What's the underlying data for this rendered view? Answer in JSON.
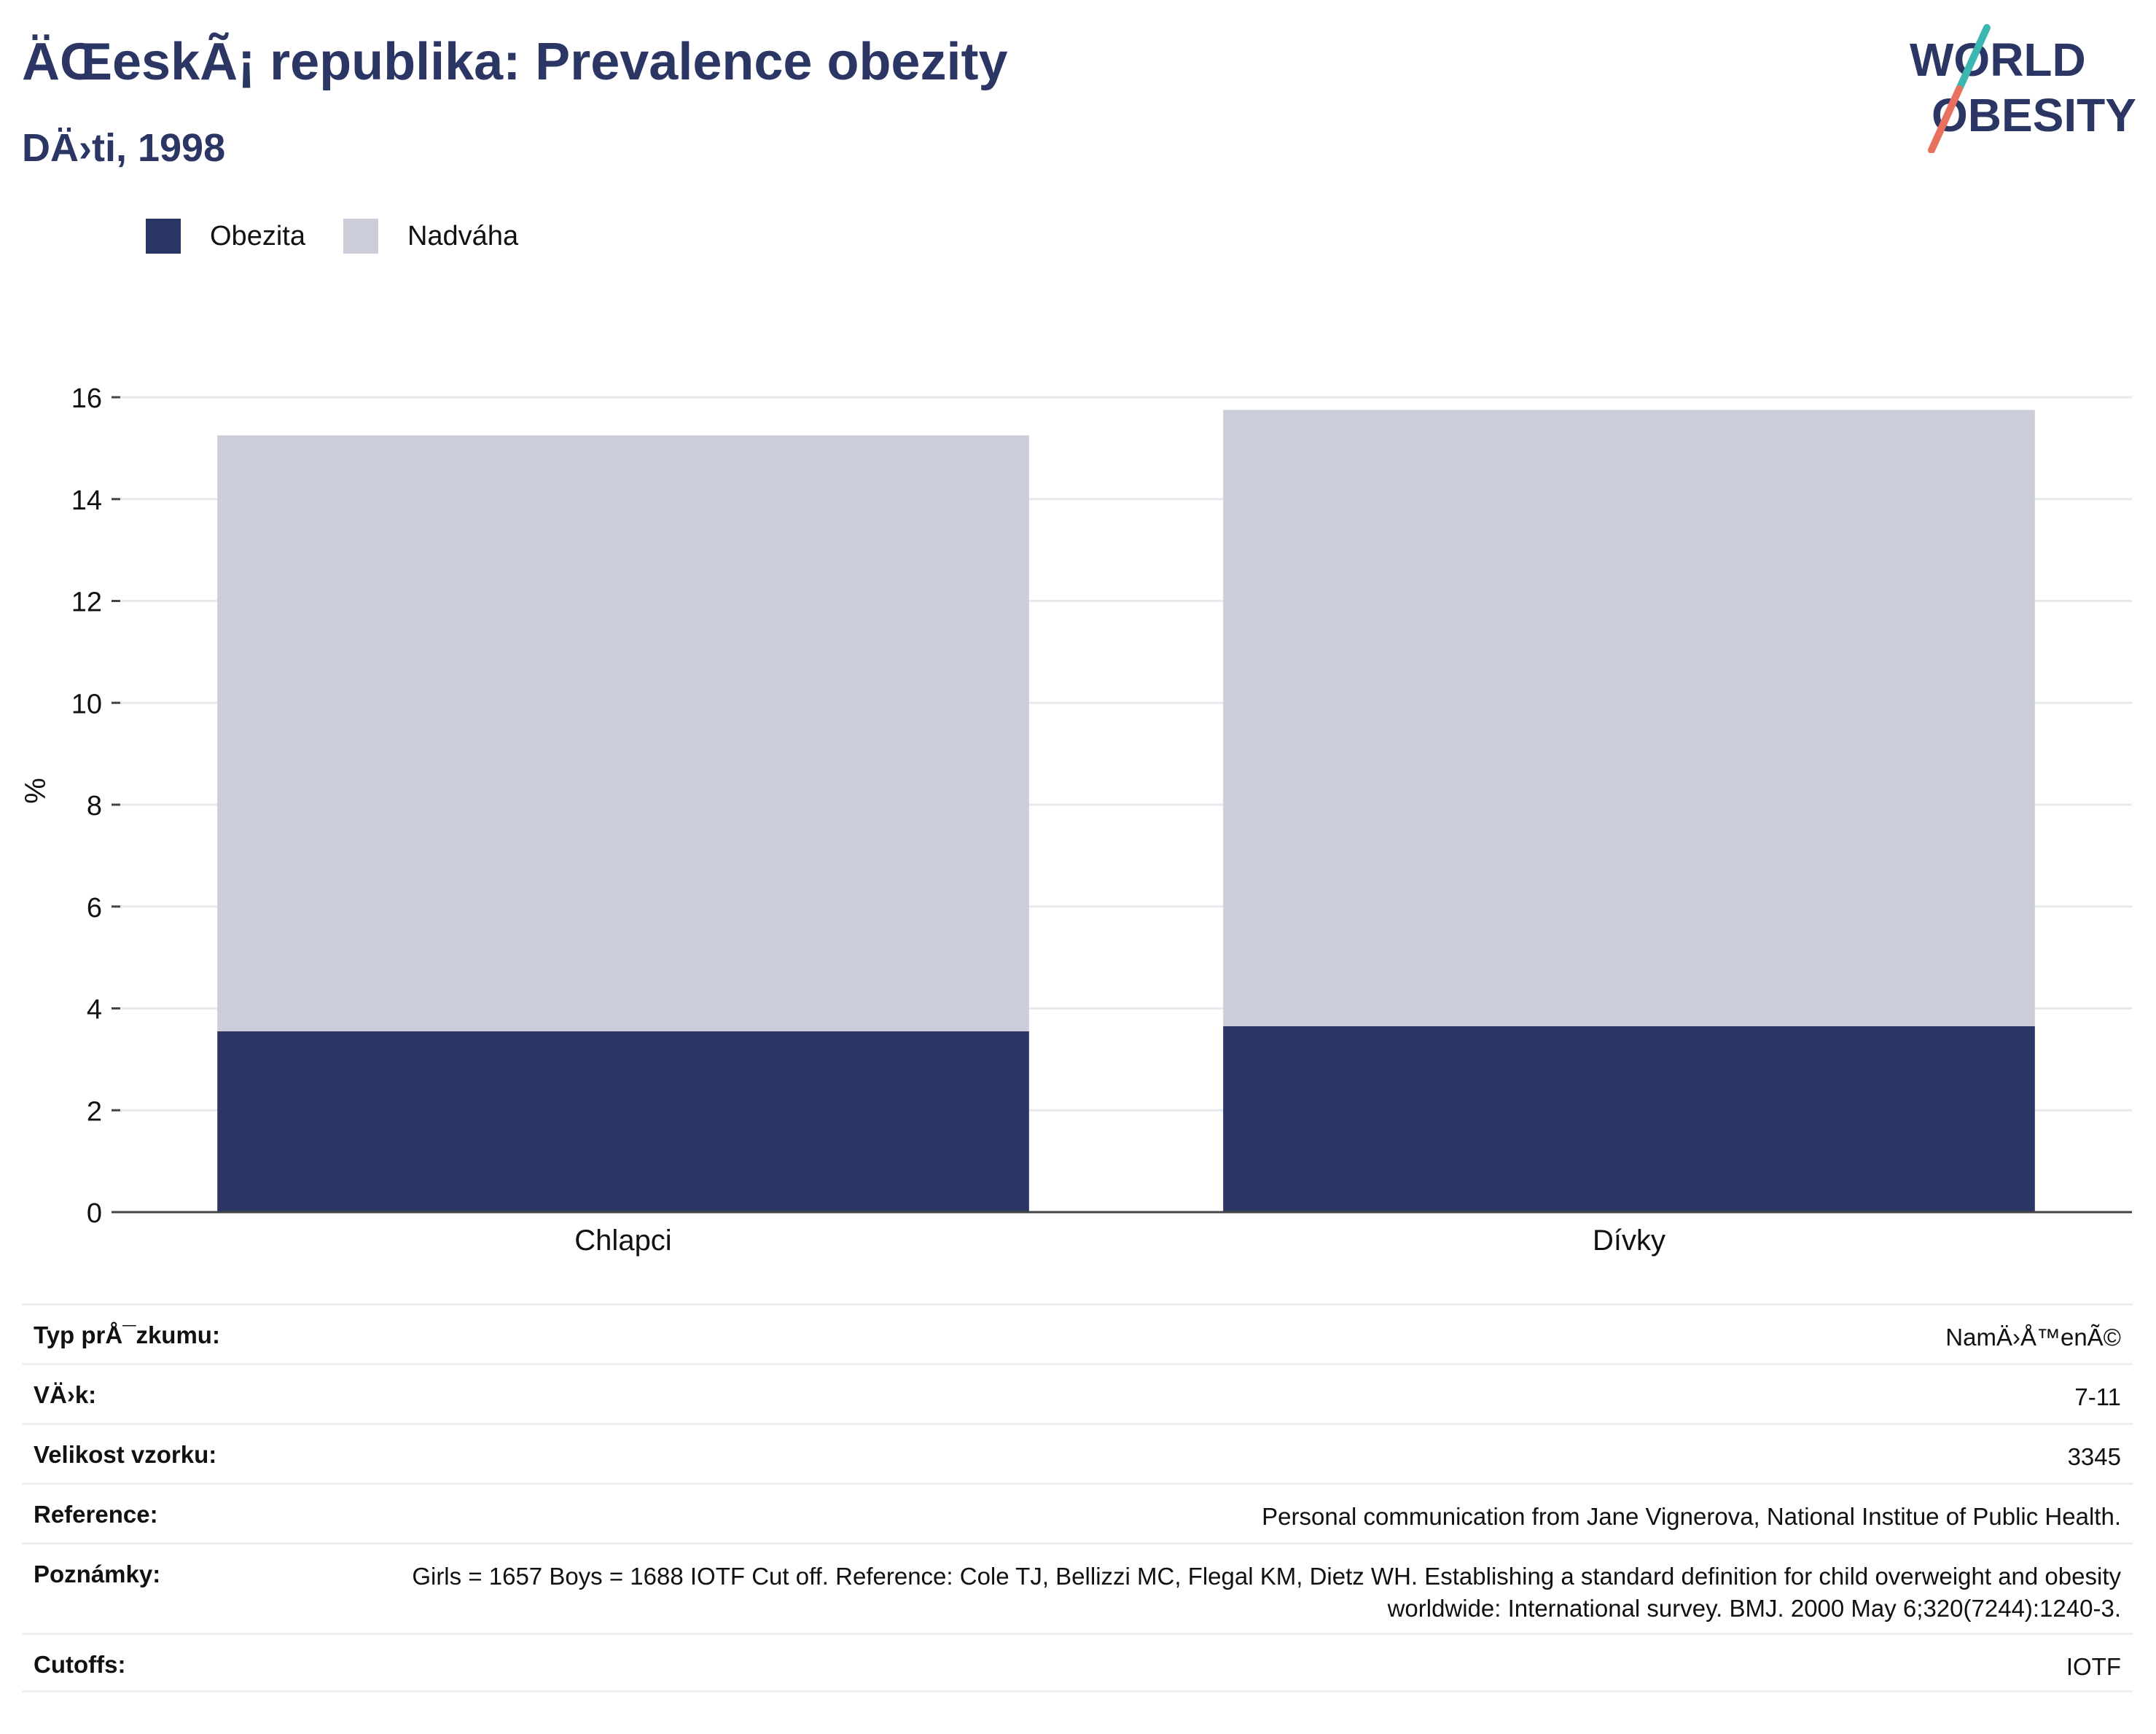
{
  "header": {
    "title": "ÄŒeskÃ¡ republika: Prevalence obezity",
    "subtitle": "DÄ›ti, 1998"
  },
  "logo": {
    "line1": "WORLD",
    "line2": "OBESITY",
    "text_color": "#2b3664",
    "slash_color_top": "#3bb6b0",
    "slash_color_bottom": "#e8705e"
  },
  "legend": [
    {
      "label": "Obezita",
      "color": "#2b3664"
    },
    {
      "label": "Nadváha",
      "color": "#cbcdd9"
    }
  ],
  "chart_data": {
    "type": "bar",
    "stacked": true,
    "categories": [
      "Chlapci",
      "Dívky"
    ],
    "series": [
      {
        "name": "Obezita",
        "color": "#2b3664",
        "values": [
          3.55,
          3.65
        ]
      },
      {
        "name": "Nadváha",
        "color": "#cbcdd9",
        "values": [
          11.7,
          12.1
        ]
      }
    ],
    "ylabel": "%",
    "ylim": [
      0,
      16
    ],
    "yticks": [
      "0",
      "2",
      "4",
      "6",
      "8",
      "10",
      "12",
      "14",
      "16"
    ],
    "grid": true,
    "legend_position": "top-left"
  },
  "info": [
    {
      "label": "Typ prÅ¯zkumu:",
      "value": "NamÄ›Å™enÃ©"
    },
    {
      "label": "VÄ›k:",
      "value": "7-11"
    },
    {
      "label": "Velikost vzorku:",
      "value": "3345"
    },
    {
      "label": "Reference:",
      "value": "Personal communication from Jane Vignerova, National Institue of Public Health."
    },
    {
      "label": "Poznámky:",
      "value": "Girls = 1657 Boys = 1688 IOTF Cut off. Reference: Cole TJ, Bellizzi MC, Flegal KM, Dietz WH. Establishing a standard definition for child overweight and obesity worldwide: International survey. BMJ. 2000 May 6;320(7244):1240-3."
    },
    {
      "label": "Cutoffs:",
      "value": "IOTF"
    }
  ]
}
